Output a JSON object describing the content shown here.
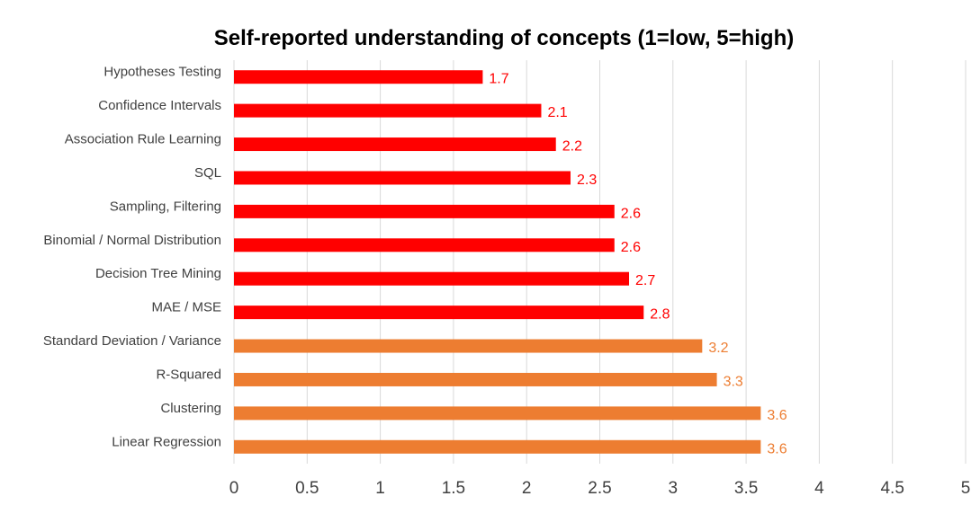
{
  "chart_data": {
    "type": "bar",
    "orientation": "horizontal",
    "title": "Self-reported understanding of concepts (1=low, 5=high)",
    "xlabel": "",
    "ylabel": "",
    "xlim": [
      0,
      5
    ],
    "grid": true,
    "ticks": [
      "0",
      "0.5",
      "1",
      "1.5",
      "2",
      "2.5",
      "3",
      "3.5",
      "4",
      "4.5",
      "5"
    ],
    "tick_values": [
      0,
      0.5,
      1,
      1.5,
      2,
      2.5,
      3,
      3.5,
      4,
      4.5,
      5
    ],
    "categories": [
      "Hypotheses Testing",
      "Confidence Intervals",
      "Association Rule Learning",
      "SQL",
      "Sampling, Filtering",
      "Binomial / Normal Distribution",
      "Decision Tree Mining",
      "MAE / MSE",
      "Standard Deviation / Variance",
      "R-Squared",
      "Clustering",
      "Linear Regression"
    ],
    "values": [
      1.7,
      2.1,
      2.2,
      2.3,
      2.6,
      2.6,
      2.7,
      2.8,
      3.2,
      3.3,
      3.6,
      3.6
    ],
    "labels": [
      "1.7",
      "2.1",
      "2.2",
      "2.3",
      "2.6",
      "2.6",
      "2.7",
      "2.8",
      "3.2",
      "3.3",
      "3.6",
      "3.6"
    ],
    "colors": [
      "#ff0000",
      "#ff0000",
      "#ff0000",
      "#ff0000",
      "#ff0000",
      "#ff0000",
      "#ff0000",
      "#ff0000",
      "#ed7d31",
      "#ed7d31",
      "#ed7d31",
      "#ed7d31"
    ]
  }
}
